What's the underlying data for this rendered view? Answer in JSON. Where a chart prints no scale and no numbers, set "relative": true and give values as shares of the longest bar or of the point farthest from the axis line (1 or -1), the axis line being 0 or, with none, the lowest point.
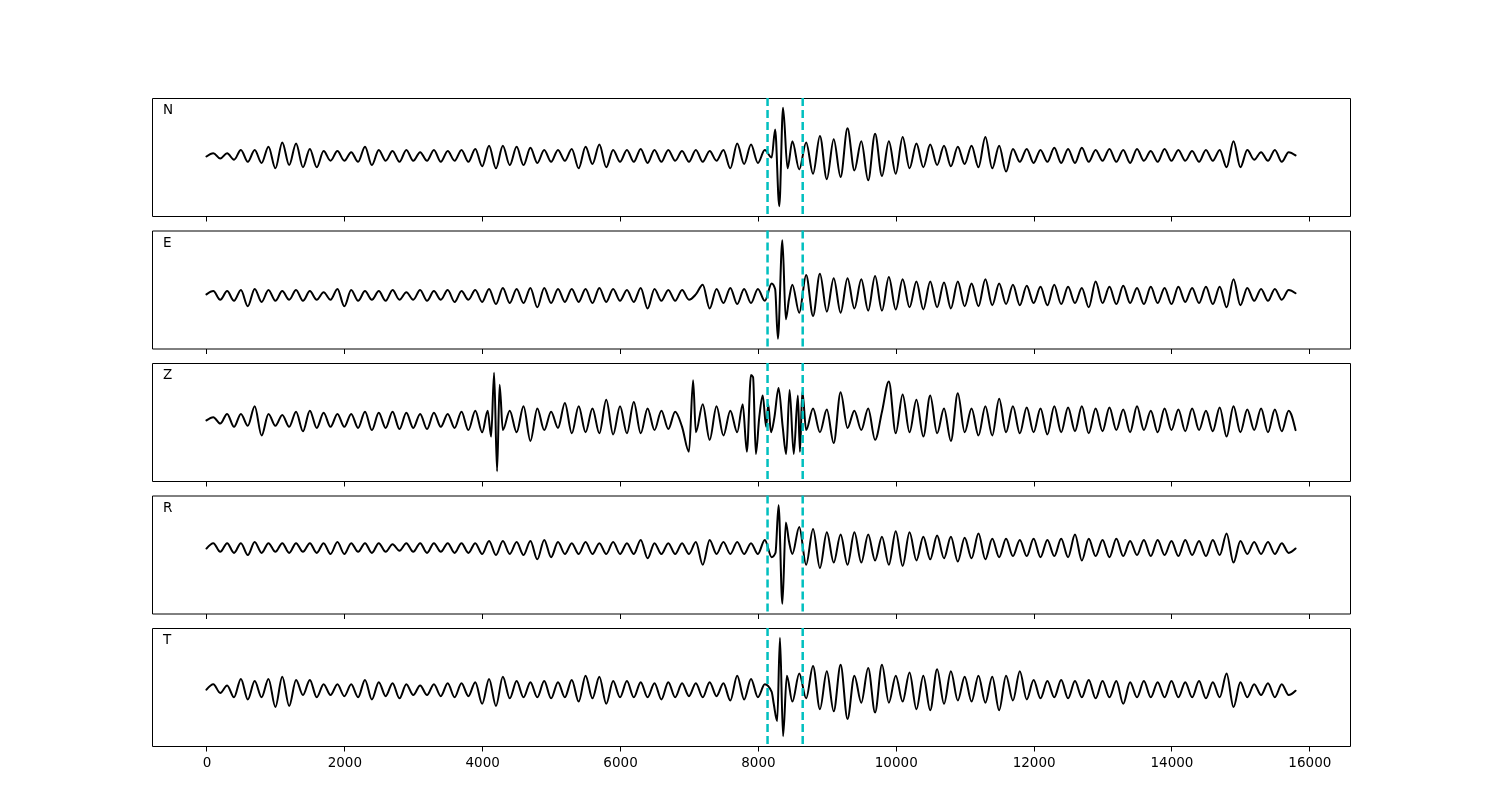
{
  "chart_data": [
    {
      "type": "line",
      "title": "N",
      "relative": true,
      "xlim": [
        -790,
        16590
      ],
      "xticks": [
        0,
        2000,
        4000,
        6000,
        8000,
        10000,
        12000,
        14000,
        16000
      ],
      "tick_labels": false,
      "ref_lines": [
        {
          "axis": "x",
          "value": 8140,
          "color": "#00bfbf",
          "line_style": "dashed"
        },
        {
          "axis": "x",
          "value": 8650,
          "color": "#00bfbf",
          "line_style": "dashed"
        }
      ],
      "x": [
        0,
        100,
        200,
        300,
        400,
        500,
        600,
        700,
        800,
        900,
        1000,
        1100,
        1200,
        1300,
        1400,
        1500,
        1600,
        1700,
        1800,
        1900,
        2000,
        2100,
        2200,
        2300,
        2400,
        2500,
        2600,
        2700,
        2800,
        2900,
        3000,
        3100,
        3200,
        3300,
        3400,
        3500,
        3600,
        3700,
        3800,
        3900,
        4000,
        4100,
        4200,
        4300,
        4400,
        4500,
        4600,
        4700,
        4800,
        4900,
        5000,
        5100,
        5200,
        5300,
        5400,
        5500,
        5600,
        5700,
        5800,
        5900,
        6000,
        6100,
        6200,
        6300,
        6400,
        6500,
        6600,
        6700,
        6800,
        6900,
        7000,
        7100,
        7200,
        7300,
        7400,
        7500,
        7600,
        7700,
        7800,
        7900,
        8000,
        8100,
        8200,
        8250,
        8310,
        8365,
        8430,
        8500,
        8600,
        8700,
        8800,
        8900,
        9000,
        9100,
        9200,
        9300,
        9400,
        9500,
        9600,
        9700,
        9800,
        9900,
        10000,
        10100,
        10200,
        10300,
        10400,
        10500,
        10600,
        10700,
        10800,
        10900,
        11000,
        11100,
        11200,
        11300,
        11400,
        11500,
        11600,
        11700,
        11800,
        11900,
        12000,
        12100,
        12200,
        12300,
        12400,
        12500,
        12600,
        12700,
        12800,
        12900,
        13000,
        13100,
        13200,
        13300,
        13400,
        13500,
        13600,
        13700,
        13800,
        13900,
        14000,
        14100,
        14200,
        14300,
        14400,
        14500,
        14600,
        14700,
        14800,
        14900,
        15000,
        15100,
        15200,
        15300,
        15400,
        15500,
        15600,
        15700,
        15800
      ],
      "series": [
        {
          "color": "#000000",
          "values": [
            0.55,
            0.58,
            0.53,
            0.58,
            0.52,
            0.61,
            0.5,
            0.61,
            0.49,
            0.64,
            0.44,
            0.68,
            0.47,
            0.67,
            0.45,
            0.62,
            0.45,
            0.6,
            0.51,
            0.6,
            0.51,
            0.59,
            0.5,
            0.64,
            0.47,
            0.61,
            0.51,
            0.6,
            0.5,
            0.61,
            0.51,
            0.59,
            0.51,
            0.61,
            0.5,
            0.6,
            0.51,
            0.61,
            0.5,
            0.62,
            0.46,
            0.65,
            0.44,
            0.65,
            0.47,
            0.64,
            0.47,
            0.63,
            0.49,
            0.61,
            0.5,
            0.61,
            0.51,
            0.62,
            0.44,
            0.64,
            0.48,
            0.66,
            0.45,
            0.61,
            0.5,
            0.61,
            0.5,
            0.62,
            0.49,
            0.61,
            0.5,
            0.61,
            0.51,
            0.6,
            0.5,
            0.61,
            0.5,
            0.6,
            0.51,
            0.61,
            0.44,
            0.67,
            0.48,
            0.66,
            0.49,
            0.61,
            0.54,
            0.8,
            0.09,
            1.0,
            0.44,
            0.69,
            0.43,
            0.68,
            0.39,
            0.74,
            0.34,
            0.71,
            0.36,
            0.81,
            0.42,
            0.69,
            0.33,
            0.76,
            0.37,
            0.69,
            0.39,
            0.73,
            0.44,
            0.67,
            0.45,
            0.66,
            0.47,
            0.65,
            0.46,
            0.64,
            0.48,
            0.65,
            0.45,
            0.73,
            0.44,
            0.65,
            0.41,
            0.62,
            0.5,
            0.62,
            0.49,
            0.61,
            0.5,
            0.63,
            0.49,
            0.62,
            0.49,
            0.63,
            0.5,
            0.61,
            0.51,
            0.62,
            0.5,
            0.61,
            0.49,
            0.62,
            0.51,
            0.6,
            0.5,
            0.62,
            0.51,
            0.61,
            0.51,
            0.6,
            0.5,
            0.61,
            0.51,
            0.61,
            0.45,
            0.69,
            0.45,
            0.61,
            0.52,
            0.59,
            0.51,
            0.61,
            0.5,
            0.59,
            0.56
          ]
        }
      ]
    },
    {
      "type": "line",
      "title": "E",
      "relative": true,
      "xlim": [
        -790,
        16590
      ],
      "xticks": [
        0,
        2000,
        4000,
        6000,
        8000,
        10000,
        12000,
        14000,
        16000
      ],
      "tick_labels": false,
      "ref_lines": [
        {
          "axis": "x",
          "value": 8140,
          "color": "#00bfbf",
          "line_style": "dashed"
        },
        {
          "axis": "x",
          "value": 8650,
          "color": "#00bfbf",
          "line_style": "dashed"
        }
      ],
      "x": [
        0,
        100,
        200,
        300,
        400,
        500,
        600,
        700,
        800,
        900,
        1000,
        1100,
        1200,
        1300,
        1400,
        1500,
        1600,
        1700,
        1800,
        1900,
        2000,
        2100,
        2200,
        2300,
        2400,
        2500,
        2600,
        2700,
        2800,
        2900,
        3000,
        3100,
        3200,
        3300,
        3400,
        3500,
        3600,
        3700,
        3800,
        3900,
        4000,
        4100,
        4200,
        4300,
        4400,
        4500,
        4600,
        4700,
        4800,
        4900,
        5000,
        5100,
        5200,
        5300,
        5400,
        5500,
        5600,
        5700,
        5800,
        5900,
        6000,
        6100,
        6200,
        6300,
        6400,
        6500,
        6600,
        6700,
        6800,
        6900,
        7000,
        7100,
        7200,
        7300,
        7400,
        7500,
        7600,
        7700,
        7800,
        7900,
        8000,
        8100,
        8200,
        8250,
        8290,
        8355,
        8405,
        8450,
        8500,
        8600,
        8700,
        8800,
        8900,
        9000,
        9100,
        9200,
        9300,
        9400,
        9500,
        9600,
        9700,
        9800,
        9900,
        10000,
        10100,
        10200,
        10300,
        10400,
        10500,
        10600,
        10700,
        10800,
        10900,
        11000,
        11100,
        11200,
        11300,
        11400,
        11500,
        11600,
        11700,
        11800,
        11900,
        12000,
        12100,
        12200,
        12300,
        12400,
        12500,
        12600,
        12700,
        12800,
        12900,
        13000,
        13100,
        13200,
        13300,
        13400,
        13500,
        13600,
        13700,
        13800,
        13900,
        14000,
        14100,
        14200,
        14300,
        14400,
        14500,
        14600,
        14700,
        14800,
        14900,
        15000,
        15100,
        15200,
        15300,
        15400,
        15500,
        15600,
        15700,
        15800
      ],
      "series": [
        {
          "color": "#000000",
          "values": [
            0.5,
            0.53,
            0.45,
            0.53,
            0.44,
            0.54,
            0.39,
            0.55,
            0.43,
            0.54,
            0.44,
            0.53,
            0.45,
            0.54,
            0.44,
            0.53,
            0.45,
            0.52,
            0.45,
            0.55,
            0.39,
            0.54,
            0.44,
            0.53,
            0.45,
            0.53,
            0.44,
            0.54,
            0.45,
            0.52,
            0.45,
            0.54,
            0.44,
            0.53,
            0.45,
            0.54,
            0.43,
            0.53,
            0.45,
            0.54,
            0.43,
            0.55,
            0.41,
            0.56,
            0.42,
            0.55,
            0.42,
            0.56,
            0.38,
            0.56,
            0.42,
            0.55,
            0.43,
            0.55,
            0.43,
            0.55,
            0.42,
            0.56,
            0.43,
            0.55,
            0.44,
            0.54,
            0.43,
            0.56,
            0.37,
            0.55,
            0.44,
            0.54,
            0.44,
            0.54,
            0.45,
            0.5,
            0.59,
            0.37,
            0.55,
            0.42,
            0.56,
            0.41,
            0.55,
            0.42,
            0.55,
            0.44,
            0.6,
            0.55,
            0.09,
            1.0,
            0.27,
            0.45,
            0.59,
            0.33,
            0.68,
            0.3,
            0.69,
            0.34,
            0.65,
            0.33,
            0.65,
            0.37,
            0.64,
            0.35,
            0.67,
            0.35,
            0.66,
            0.36,
            0.64,
            0.38,
            0.62,
            0.36,
            0.62,
            0.38,
            0.61,
            0.37,
            0.62,
            0.39,
            0.6,
            0.39,
            0.64,
            0.4,
            0.6,
            0.41,
            0.59,
            0.4,
            0.58,
            0.42,
            0.57,
            0.4,
            0.59,
            0.41,
            0.57,
            0.42,
            0.56,
            0.38,
            0.62,
            0.42,
            0.57,
            0.41,
            0.58,
            0.42,
            0.56,
            0.41,
            0.57,
            0.42,
            0.56,
            0.41,
            0.57,
            0.43,
            0.56,
            0.42,
            0.57,
            0.41,
            0.57,
            0.38,
            0.64,
            0.4,
            0.56,
            0.44,
            0.55,
            0.44,
            0.55,
            0.45,
            0.54,
            0.51
          ]
        }
      ]
    },
    {
      "type": "line",
      "title": "Z",
      "relative": true,
      "xlim": [
        -790,
        16590
      ],
      "xticks": [
        0,
        2000,
        4000,
        6000,
        8000,
        10000,
        12000,
        14000,
        16000
      ],
      "tick_labels": false,
      "ref_lines": [
        {
          "axis": "x",
          "value": 8140,
          "color": "#00bfbf",
          "line_style": "dashed"
        },
        {
          "axis": "x",
          "value": 8650,
          "color": "#00bfbf",
          "line_style": "dashed"
        }
      ],
      "x": [
        0,
        100,
        200,
        300,
        400,
        500,
        600,
        700,
        800,
        900,
        1000,
        1100,
        1200,
        1300,
        1400,
        1500,
        1600,
        1700,
        1800,
        1900,
        2000,
        2100,
        2200,
        2300,
        2400,
        2500,
        2600,
        2700,
        2800,
        2900,
        3000,
        3100,
        3200,
        3300,
        3400,
        3500,
        3600,
        3700,
        3800,
        3900,
        4000,
        4080,
        4130,
        4173,
        4216,
        4253,
        4300,
        4400,
        4500,
        4600,
        4700,
        4800,
        4900,
        5000,
        5100,
        5200,
        5300,
        5400,
        5500,
        5600,
        5700,
        5800,
        5900,
        6000,
        6100,
        6200,
        6300,
        6400,
        6500,
        6600,
        6700,
        6800,
        6900,
        7000,
        7060,
        7100,
        7200,
        7300,
        7400,
        7500,
        7600,
        7700,
        7780,
        7840,
        7900,
        7930,
        7970,
        8020,
        8070,
        8120,
        8150,
        8190,
        8240,
        8300,
        8360,
        8410,
        8460,
        8520,
        8580,
        8610,
        8645,
        8700,
        8800,
        8900,
        9000,
        9100,
        9200,
        9300,
        9400,
        9500,
        9600,
        9700,
        9800,
        9900,
        10000,
        10100,
        10200,
        10300,
        10400,
        10500,
        10600,
        10700,
        10800,
        10900,
        11000,
        11100,
        11200,
        11300,
        11400,
        11500,
        11600,
        11700,
        11800,
        11900,
        12000,
        12100,
        12200,
        12300,
        12400,
        12500,
        12600,
        12700,
        12800,
        12900,
        13000,
        13100,
        13200,
        13300,
        13400,
        13500,
        13600,
        13700,
        13800,
        13900,
        14000,
        14100,
        14200,
        14300,
        14400,
        14500,
        14600,
        14700,
        14800,
        14900,
        15000,
        15100,
        15200,
        15300,
        15400,
        15500,
        15600,
        15700,
        15800
      ],
      "series": [
        {
          "color": "#000000",
          "values": [
            0.56,
            0.59,
            0.53,
            0.62,
            0.5,
            0.62,
            0.51,
            0.69,
            0.42,
            0.62,
            0.51,
            0.61,
            0.5,
            0.64,
            0.46,
            0.65,
            0.49,
            0.63,
            0.5,
            0.62,
            0.5,
            0.62,
            0.49,
            0.64,
            0.47,
            0.63,
            0.49,
            0.64,
            0.48,
            0.63,
            0.49,
            0.62,
            0.48,
            0.63,
            0.5,
            0.62,
            0.49,
            0.64,
            0.47,
            0.65,
            0.45,
            0.65,
            0.41,
            1.0,
            0.09,
            0.89,
            0.47,
            0.65,
            0.45,
            0.69,
            0.37,
            0.67,
            0.47,
            0.64,
            0.49,
            0.72,
            0.44,
            0.69,
            0.45,
            0.67,
            0.44,
            0.75,
            0.43,
            0.69,
            0.44,
            0.73,
            0.44,
            0.67,
            0.47,
            0.65,
            0.48,
            0.64,
            0.5,
            0.27,
            0.93,
            0.45,
            0.71,
            0.38,
            0.69,
            0.42,
            0.65,
            0.45,
            0.71,
            0.27,
            0.98,
            0.96,
            0.25,
            0.59,
            0.79,
            0.5,
            0.71,
            0.45,
            0.59,
            0.86,
            0.5,
            0.25,
            0.84,
            0.25,
            0.79,
            0.27,
            0.83,
            0.47,
            0.67,
            0.45,
            0.66,
            0.35,
            0.82,
            0.49,
            0.65,
            0.47,
            0.67,
            0.38,
            0.64,
            0.92,
            0.44,
            0.8,
            0.45,
            0.75,
            0.41,
            0.79,
            0.44,
            0.67,
            0.37,
            0.81,
            0.45,
            0.67,
            0.42,
            0.69,
            0.42,
            0.76,
            0.45,
            0.69,
            0.44,
            0.68,
            0.45,
            0.67,
            0.43,
            0.69,
            0.45,
            0.68,
            0.46,
            0.69,
            0.44,
            0.67,
            0.46,
            0.68,
            0.47,
            0.66,
            0.45,
            0.69,
            0.47,
            0.65,
            0.45,
            0.67,
            0.47,
            0.66,
            0.46,
            0.67,
            0.47,
            0.65,
            0.46,
            0.68,
            0.41,
            0.69,
            0.45,
            0.66,
            0.47,
            0.67,
            0.45,
            0.66,
            0.46,
            0.65,
            0.47
          ]
        }
      ]
    },
    {
      "type": "line",
      "title": "R",
      "relative": true,
      "xlim": [
        -790,
        16590
      ],
      "xticks": [
        0,
        2000,
        4000,
        6000,
        8000,
        10000,
        12000,
        14000,
        16000
      ],
      "tick_labels": false,
      "ref_lines": [
        {
          "axis": "x",
          "value": 8140,
          "color": "#00bfbf",
          "line_style": "dashed"
        },
        {
          "axis": "x",
          "value": 8650,
          "color": "#00bfbf",
          "line_style": "dashed"
        }
      ],
      "x": [
        0,
        100,
        200,
        300,
        400,
        500,
        600,
        700,
        800,
        900,
        1000,
        1100,
        1200,
        1300,
        1400,
        1500,
        1600,
        1700,
        1800,
        1900,
        2000,
        2100,
        2200,
        2300,
        2400,
        2500,
        2600,
        2700,
        2800,
        2900,
        3000,
        3100,
        3200,
        3300,
        3400,
        3500,
        3600,
        3700,
        3800,
        3900,
        4000,
        4100,
        4200,
        4300,
        4400,
        4500,
        4600,
        4700,
        4800,
        4900,
        5000,
        5100,
        5200,
        5300,
        5400,
        5500,
        5600,
        5700,
        5800,
        5900,
        6000,
        6100,
        6200,
        6300,
        6400,
        6500,
        6600,
        6700,
        6800,
        6900,
        7000,
        7100,
        7200,
        7300,
        7400,
        7500,
        7600,
        7700,
        7800,
        7900,
        8000,
        8100,
        8200,
        8255,
        8300,
        8355,
        8405,
        8450,
        8500,
        8600,
        8700,
        8800,
        8900,
        9000,
        9100,
        9200,
        9300,
        9400,
        9500,
        9600,
        9700,
        9800,
        9900,
        10000,
        10100,
        10200,
        10300,
        10400,
        10500,
        10600,
        10700,
        10800,
        10900,
        11000,
        11100,
        11200,
        11300,
        11400,
        11500,
        11600,
        11700,
        11800,
        11900,
        12000,
        12100,
        12200,
        12300,
        12400,
        12500,
        12600,
        12700,
        12800,
        12900,
        13000,
        13100,
        13200,
        13300,
        13400,
        13500,
        13600,
        13700,
        13800,
        13900,
        14000,
        14100,
        14200,
        14300,
        14400,
        14500,
        14600,
        14700,
        14800,
        14900,
        15000,
        15100,
        15200,
        15300,
        15400,
        15500,
        15600,
        15700,
        15800
      ],
      "series": [
        {
          "color": "#000000",
          "values": [
            0.6,
            0.65,
            0.57,
            0.65,
            0.56,
            0.65,
            0.54,
            0.66,
            0.56,
            0.65,
            0.57,
            0.65,
            0.56,
            0.65,
            0.57,
            0.65,
            0.56,
            0.65,
            0.55,
            0.66,
            0.55,
            0.65,
            0.57,
            0.65,
            0.56,
            0.65,
            0.57,
            0.64,
            0.58,
            0.65,
            0.57,
            0.65,
            0.56,
            0.65,
            0.57,
            0.65,
            0.56,
            0.65,
            0.56,
            0.65,
            0.55,
            0.67,
            0.54,
            0.67,
            0.55,
            0.66,
            0.54,
            0.67,
            0.5,
            0.68,
            0.52,
            0.66,
            0.55,
            0.65,
            0.55,
            0.66,
            0.55,
            0.65,
            0.55,
            0.66,
            0.55,
            0.65,
            0.55,
            0.68,
            0.51,
            0.65,
            0.55,
            0.65,
            0.55,
            0.65,
            0.55,
            0.66,
            0.45,
            0.68,
            0.55,
            0.66,
            0.55,
            0.66,
            0.55,
            0.65,
            0.55,
            0.68,
            0.52,
            0.56,
            1.0,
            0.09,
            0.84,
            0.67,
            0.55,
            0.8,
            0.45,
            0.78,
            0.42,
            0.75,
            0.47,
            0.73,
            0.45,
            0.75,
            0.47,
            0.73,
            0.49,
            0.71,
            0.45,
            0.76,
            0.44,
            0.75,
            0.49,
            0.71,
            0.5,
            0.72,
            0.51,
            0.71,
            0.48,
            0.7,
            0.51,
            0.74,
            0.5,
            0.69,
            0.52,
            0.69,
            0.53,
            0.68,
            0.53,
            0.69,
            0.52,
            0.68,
            0.53,
            0.69,
            0.52,
            0.73,
            0.49,
            0.69,
            0.53,
            0.68,
            0.52,
            0.69,
            0.53,
            0.67,
            0.54,
            0.68,
            0.53,
            0.68,
            0.54,
            0.67,
            0.53,
            0.68,
            0.54,
            0.67,
            0.53,
            0.68,
            0.54,
            0.74,
            0.47,
            0.67,
            0.55,
            0.66,
            0.55,
            0.66,
            0.55,
            0.65,
            0.56,
            0.6
          ]
        }
      ]
    },
    {
      "type": "line",
      "title": "T",
      "relative": true,
      "xlim": [
        -790,
        16590
      ],
      "xticks": [
        0,
        2000,
        4000,
        6000,
        8000,
        10000,
        12000,
        14000,
        16000
      ],
      "tick_labels": "x",
      "ref_lines": [
        {
          "axis": "x",
          "value": 8140,
          "color": "#00bfbf",
          "line_style": "dashed"
        },
        {
          "axis": "x",
          "value": 8650,
          "color": "#00bfbf",
          "line_style": "dashed"
        }
      ],
      "x": [
        0,
        100,
        200,
        300,
        400,
        500,
        600,
        700,
        800,
        900,
        1000,
        1100,
        1200,
        1300,
        1400,
        1500,
        1600,
        1700,
        1800,
        1900,
        2000,
        2100,
        2200,
        2300,
        2400,
        2500,
        2600,
        2700,
        2800,
        2900,
        3000,
        3100,
        3200,
        3300,
        3400,
        3500,
        3600,
        3700,
        3800,
        3900,
        4000,
        4100,
        4200,
        4300,
        4400,
        4500,
        4600,
        4700,
        4800,
        4900,
        5000,
        5100,
        5200,
        5300,
        5400,
        5500,
        5600,
        5700,
        5800,
        5900,
        6000,
        6100,
        6200,
        6300,
        6400,
        6500,
        6600,
        6700,
        6800,
        6900,
        7000,
        7100,
        7200,
        7300,
        7400,
        7500,
        7600,
        7700,
        7800,
        7900,
        8000,
        8100,
        8200,
        8230,
        8280,
        8320,
        8365,
        8420,
        8500,
        8600,
        8700,
        8800,
        8900,
        9000,
        9100,
        9200,
        9300,
        9400,
        9500,
        9600,
        9700,
        9800,
        9900,
        10000,
        10100,
        10200,
        10300,
        10400,
        10500,
        10600,
        10700,
        10800,
        10900,
        11000,
        11100,
        11200,
        11300,
        11400,
        11500,
        11600,
        11700,
        11800,
        11900,
        12000,
        12100,
        12200,
        12300,
        12400,
        12500,
        12600,
        12700,
        12800,
        12900,
        13000,
        13100,
        13200,
        13300,
        13400,
        13500,
        13600,
        13700,
        13800,
        13900,
        14000,
        14100,
        14200,
        14300,
        14400,
        14500,
        14600,
        14700,
        14800,
        14900,
        15000,
        15100,
        15200,
        15300,
        15400,
        15500,
        15600,
        15700,
        15800
      ],
      "series": [
        {
          "color": "#000000",
          "values": [
            0.52,
            0.57,
            0.49,
            0.56,
            0.45,
            0.62,
            0.43,
            0.6,
            0.45,
            0.62,
            0.36,
            0.64,
            0.37,
            0.61,
            0.47,
            0.61,
            0.45,
            0.57,
            0.47,
            0.57,
            0.46,
            0.57,
            0.45,
            0.61,
            0.43,
            0.59,
            0.46,
            0.58,
            0.44,
            0.57,
            0.47,
            0.56,
            0.47,
            0.57,
            0.46,
            0.58,
            0.45,
            0.58,
            0.46,
            0.59,
            0.39,
            0.62,
            0.37,
            0.64,
            0.44,
            0.6,
            0.45,
            0.59,
            0.45,
            0.6,
            0.44,
            0.59,
            0.45,
            0.61,
            0.41,
            0.65,
            0.44,
            0.64,
            0.39,
            0.6,
            0.45,
            0.6,
            0.45,
            0.59,
            0.45,
            0.58,
            0.43,
            0.59,
            0.45,
            0.58,
            0.46,
            0.58,
            0.45,
            0.59,
            0.46,
            0.58,
            0.42,
            0.65,
            0.43,
            0.62,
            0.45,
            0.57,
            0.5,
            0.39,
            0.23,
            1.0,
            0.09,
            0.65,
            0.41,
            0.67,
            0.44,
            0.74,
            0.34,
            0.69,
            0.32,
            0.75,
            0.25,
            0.65,
            0.4,
            0.72,
            0.31,
            0.75,
            0.4,
            0.65,
            0.41,
            0.68,
            0.34,
            0.65,
            0.33,
            0.71,
            0.39,
            0.69,
            0.42,
            0.64,
            0.41,
            0.65,
            0.4,
            0.64,
            0.33,
            0.65,
            0.42,
            0.69,
            0.43,
            0.61,
            0.44,
            0.6,
            0.45,
            0.61,
            0.44,
            0.6,
            0.45,
            0.61,
            0.44,
            0.6,
            0.45,
            0.6,
            0.39,
            0.59,
            0.45,
            0.6,
            0.45,
            0.59,
            0.45,
            0.6,
            0.45,
            0.59,
            0.45,
            0.6,
            0.44,
            0.59,
            0.45,
            0.67,
            0.36,
            0.59,
            0.45,
            0.57,
            0.47,
            0.58,
            0.45,
            0.57,
            0.47,
            0.51
          ]
        }
      ]
    }
  ]
}
